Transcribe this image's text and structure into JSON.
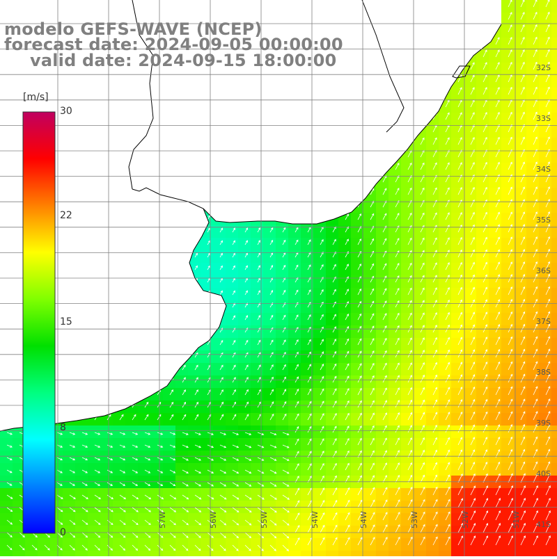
{
  "title": {
    "model": "modelo GEFS-WAVE (NCEP)",
    "forecast": "forecast date: 2024-09-05 00:00:00",
    "valid": "valid date: 2024-09-15 18:00:00"
  },
  "colorbar": {
    "unit": "[m/s]",
    "ticks": [
      "30",
      "22",
      "15",
      "8",
      "0"
    ],
    "tick_values": [
      30,
      22,
      15,
      8,
      0
    ],
    "range": [
      0,
      30
    ],
    "colors": [
      "#0000ff",
      "#0080ff",
      "#00ffff",
      "#00ff80",
      "#00e000",
      "#80ff00",
      "#ffff00",
      "#ff8000",
      "#ff0000",
      "#c00060"
    ]
  },
  "map": {
    "type": "wind-speed-field",
    "lon_range": [
      -59,
      -50.5
    ],
    "lat_range": [
      -41.2,
      -31.5
    ],
    "lat_labels": [
      "32S",
      "33S",
      "34S",
      "35S",
      "36S",
      "37S",
      "38S",
      "39S",
      "40S",
      "41S"
    ],
    "lon_labels": [
      "57W",
      "56W",
      "55W",
      "54W",
      "53W",
      "52W",
      "51W"
    ],
    "lon_label_partial": [
      "57W",
      "56W"
    ],
    "land_color": "#ffffff",
    "grid_color": "#808080",
    "coast_color": "#000000",
    "arrow_color": "#ffffff"
  }
}
